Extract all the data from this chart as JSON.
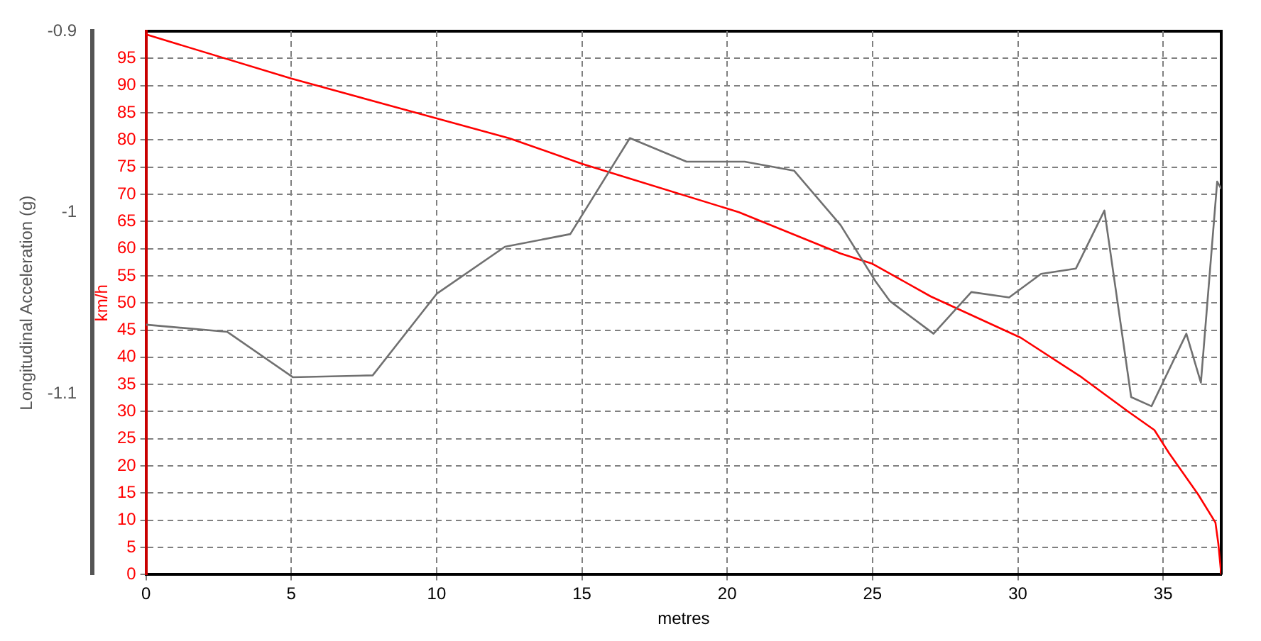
{
  "chart_data": {
    "type": "line",
    "xlabel": "metres",
    "ylabel": "Longitudinal Acceleration (g)",
    "y2label": "km/h",
    "xlim": [
      0,
      37
    ],
    "xticks": [
      0,
      5,
      10,
      15,
      20,
      25,
      30,
      35
    ],
    "ylim": [
      -1.2,
      -0.9
    ],
    "yticks": [
      -0.9,
      -1,
      -1.1
    ],
    "y2lim": [
      0,
      100
    ],
    "y2ticks": [
      0,
      5,
      10,
      15,
      20,
      25,
      30,
      35,
      40,
      45,
      50,
      55,
      60,
      65,
      70,
      75,
      80,
      85,
      90,
      95
    ],
    "grid": true,
    "legend": false,
    "marker": "none",
    "line_style": "solid",
    "series": [
      {
        "color": "#707070",
        "x": [
          0,
          2.8,
          5.05,
          7.8,
          10,
          12.35,
          14.6,
          16.65,
          18.6,
          20.6,
          22.3,
          23.9,
          25.1,
          25.6,
          27.1,
          28.4,
          29.7,
          30.8,
          32,
          32.98,
          33.9,
          34.6,
          35.8,
          36.3,
          36.86,
          37
        ],
        "values": [
          -1.062,
          -1.066,
          -1.091,
          -1.09,
          -1.045,
          -1.019,
          -1.012,
          -0.959,
          -0.972,
          -0.972,
          -0.977,
          -1.007,
          -1.038,
          -1.049,
          -1.067,
          -1.044,
          -1.047,
          -1.034,
          -1.031,
          -0.999,
          -1.102,
          -1.107,
          -1.067,
          -1.094,
          -0.983,
          -0.987
        ]
      },
      {
        "color": "#ff0000",
        "axis": "y2",
        "x": [
          0,
          5,
          8.4,
          12.5,
          15,
          20.4,
          23.9,
          25,
          27,
          30.1,
          32.2,
          33.8,
          34.7,
          35.2,
          36.2,
          36.8,
          36.9,
          37
        ],
        "values": [
          99.4,
          91.3,
          86.3,
          80.3,
          75.6,
          66.7,
          59.1,
          57.2,
          51.2,
          43.6,
          36.3,
          30,
          26.6,
          22.4,
          14.8,
          9.6,
          5.7,
          0
        ]
      }
    ]
  }
}
